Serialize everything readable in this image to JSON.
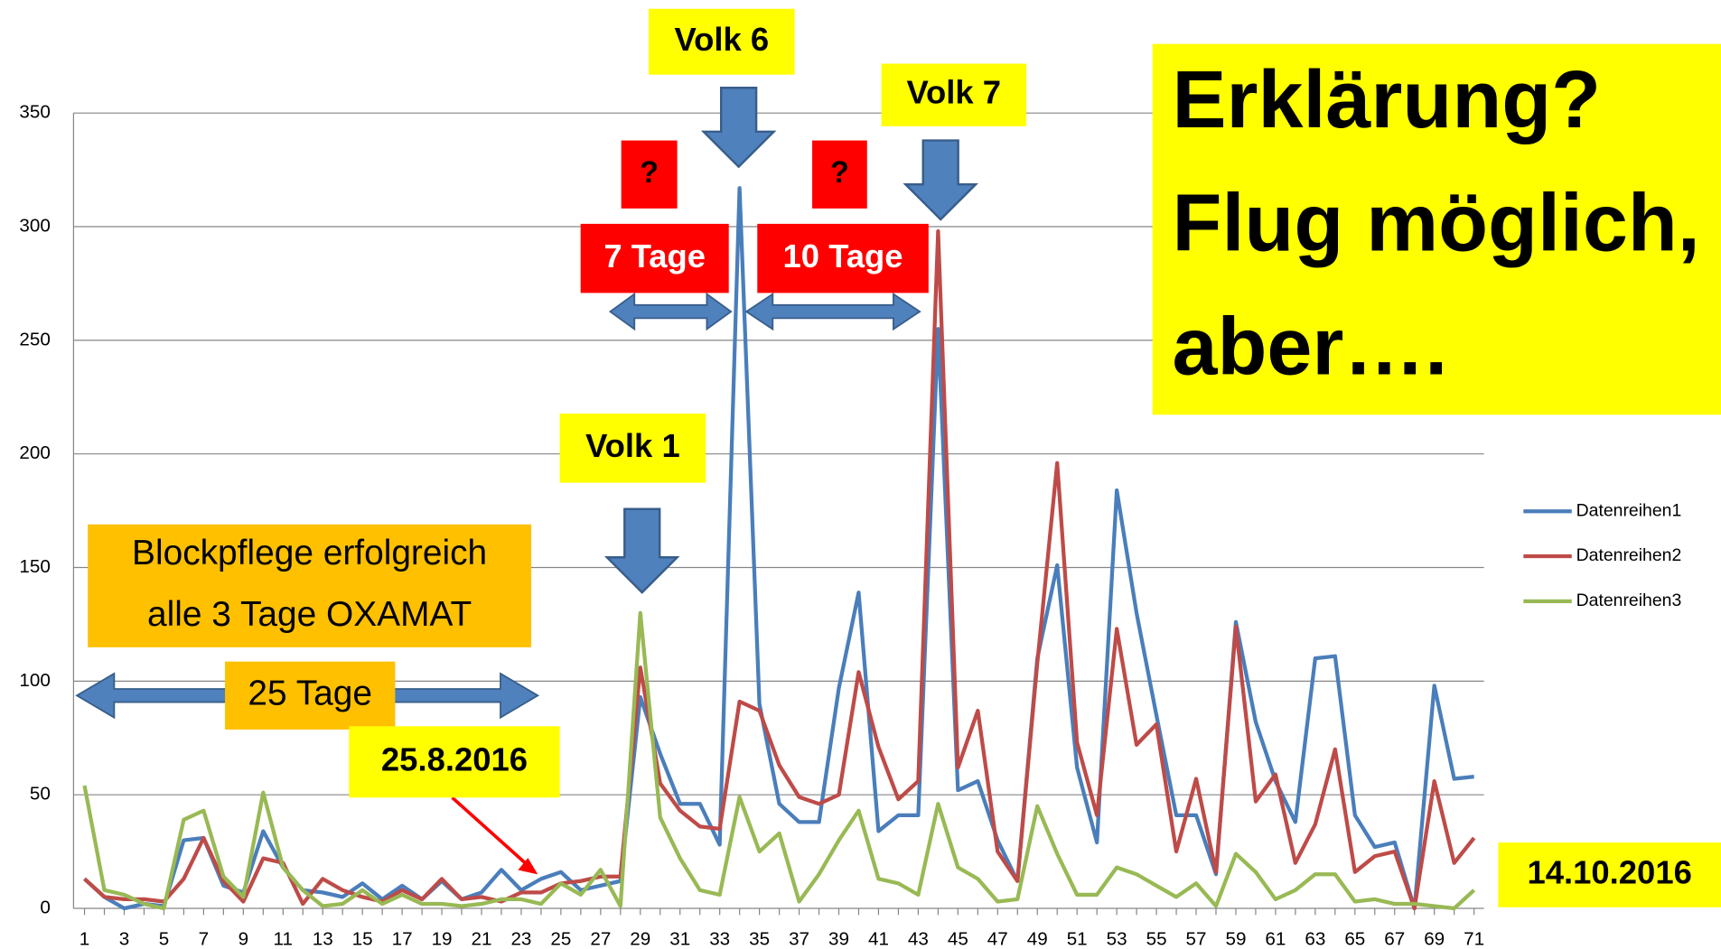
{
  "chart_data": {
    "type": "line",
    "categories": [
      1,
      null,
      3,
      null,
      5,
      null,
      7,
      null,
      9,
      null,
      11,
      null,
      13,
      null,
      15,
      null,
      17,
      null,
      19,
      null,
      21,
      null,
      23,
      null,
      25,
      null,
      27,
      null,
      29,
      null,
      31,
      null,
      33,
      null,
      35,
      null,
      37,
      null,
      39,
      null,
      41,
      null,
      43,
      null,
      45,
      null,
      47,
      null,
      49,
      null,
      51,
      null,
      53,
      null,
      55,
      null,
      57,
      null,
      59,
      null,
      61,
      null,
      63,
      null,
      65,
      null,
      67,
      null,
      69,
      null,
      71
    ],
    "series": [
      {
        "name": "Datenreihen1",
        "color": "#4a7ebb",
        "values": [
          13,
          5,
          0,
          2,
          1,
          30,
          31,
          10,
          7,
          34,
          18,
          8,
          7,
          5,
          11,
          4,
          10,
          4,
          12,
          4,
          7,
          17,
          8,
          13,
          16,
          8,
          10,
          12,
          93,
          68,
          46,
          46,
          28,
          317,
          90,
          46,
          38,
          38,
          97,
          139,
          34,
          41,
          41,
          255,
          52,
          56,
          30,
          12,
          110,
          151,
          62,
          29,
          184,
          130,
          85,
          41,
          41,
          15,
          126,
          82,
          56,
          38,
          110,
          111,
          41,
          27,
          29,
          0,
          98,
          57,
          58
        ]
      },
      {
        "name": "Datenreihen2",
        "color": "#be4b48",
        "values": [
          13,
          5,
          4,
          4,
          3,
          13,
          31,
          12,
          3,
          22,
          20,
          2,
          13,
          8,
          5,
          3,
          8,
          4,
          13,
          4,
          5,
          3,
          7,
          7,
          11,
          12,
          14,
          14,
          106,
          55,
          43,
          36,
          35,
          91,
          87,
          63,
          49,
          46,
          50,
          104,
          71,
          48,
          56,
          298,
          62,
          87,
          25,
          12,
          108,
          196,
          73,
          41,
          123,
          72,
          81,
          25,
          57,
          16,
          124,
          47,
          59,
          20,
          37,
          70,
          16,
          23,
          25,
          0,
          56,
          20,
          31
        ]
      },
      {
        "name": "Datenreihen3",
        "color": "#98b954",
        "values": [
          54,
          8,
          6,
          2,
          0,
          39,
          43,
          14,
          5,
          51,
          18,
          8,
          1,
          2,
          8,
          2,
          6,
          2,
          2,
          1,
          2,
          4,
          4,
          2,
          11,
          6,
          17,
          1,
          130,
          40,
          22,
          8,
          6,
          49,
          25,
          33,
          3,
          15,
          30,
          43,
          13,
          11,
          6,
          46,
          18,
          13,
          3,
          4,
          45,
          24,
          6,
          6,
          18,
          15,
          10,
          5,
          11,
          1,
          24,
          16,
          4,
          8,
          15,
          15,
          3,
          4,
          2,
          2,
          1,
          0,
          8
        ]
      }
    ],
    "ylim": [
      0,
      350
    ],
    "yticks": [
      0,
      50,
      100,
      150,
      200,
      250,
      300,
      350
    ],
    "grid": true,
    "legend": "right",
    "annotations": [
      "Volk 6",
      "Volk 7",
      "?",
      "?",
      "7 Tage",
      "10 Tage",
      "Volk 1",
      [
        "Blockpflege erfolgreich",
        "alle 3 Tage OXAMAT"
      ],
      "25 Tage",
      "25.8.2016",
      "14.10.2016",
      [
        "Erklärung?",
        "Flug möglich,",
        "aber…."
      ]
    ]
  }
}
